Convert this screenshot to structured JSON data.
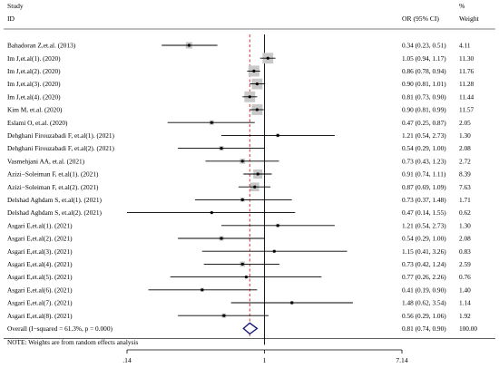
{
  "headers": {
    "study": "Study",
    "id": "ID",
    "or_ci": "OR (95% CI)",
    "pct": "%",
    "weight": "Weight"
  },
  "note": "NOTE: Weights are from random effects analysis",
  "colors": {
    "null_line": "#000000",
    "overall_line": "#cc2222",
    "diamond": "#1a1a7a",
    "box": "#c8c8c8",
    "ci": "#000000"
  },
  "chart_data": {
    "type": "forest",
    "x_scale": "log",
    "x_ticks": [
      {
        "value": 0.14,
        "label": ".14"
      },
      {
        "value": 1,
        "label": "1"
      },
      {
        "value": 7.14,
        "label": "7.14"
      }
    ],
    "xlim": [
      0.14,
      7.14
    ],
    "null_value": 1,
    "studies": [
      {
        "label": "Bahadoran Z,et.al. (2013)",
        "or": 0.34,
        "lo": 0.23,
        "hi": 0.51,
        "ci_text": "0.34 (0.23, 0.51)",
        "weight": 4.11,
        "weight_text": "4.11"
      },
      {
        "label": "Im J,et.al(1). (2020)",
        "or": 1.05,
        "lo": 0.94,
        "hi": 1.17,
        "ci_text": "1.05 (0.94, 1.17)",
        "weight": 11.3,
        "weight_text": "11.30"
      },
      {
        "label": "Im J,et.al(2). (2020)",
        "or": 0.86,
        "lo": 0.78,
        "hi": 0.94,
        "ci_text": "0.86 (0.78, 0.94)",
        "weight": 11.76,
        "weight_text": "11.76"
      },
      {
        "label": "Im J,et.al(3). (2020)",
        "or": 0.9,
        "lo": 0.81,
        "hi": 1.01,
        "ci_text": "0.90 (0.81, 1.01)",
        "weight": 11.28,
        "weight_text": "11.28"
      },
      {
        "label": "Im J,et.al(4). (2020)",
        "or": 0.81,
        "lo": 0.73,
        "hi": 0.9,
        "ci_text": "0.81 (0.73, 0.90)",
        "weight": 11.44,
        "weight_text": "11.44"
      },
      {
        "label": "Kim M, et.al. (2020)",
        "or": 0.9,
        "lo": 0.81,
        "hi": 0.99,
        "ci_text": "0.90 (0.81, 0.99)",
        "weight": 11.57,
        "weight_text": "11.57"
      },
      {
        "label": "Eslami O, et.al. (2020)",
        "or": 0.47,
        "lo": 0.25,
        "hi": 0.87,
        "ci_text": "0.47 (0.25, 0.87)",
        "weight": 2.05,
        "weight_text": "2.05"
      },
      {
        "label": "Dehghani Firouzabadi F, et.al(1). (2021)",
        "or": 1.21,
        "lo": 0.54,
        "hi": 2.73,
        "ci_text": "1.21 (0.54, 2.73)",
        "weight": 1.3,
        "weight_text": "1.30"
      },
      {
        "label": "Dehghani Firouzabadi F, et.al(2). (2021)",
        "or": 0.54,
        "lo": 0.29,
        "hi": 1.0,
        "ci_text": "0.54 (0.29, 1.00)",
        "weight": 2.08,
        "weight_text": "2.08"
      },
      {
        "label": "Vasmehjani AA, et.al. (2021)",
        "or": 0.73,
        "lo": 0.43,
        "hi": 1.23,
        "ci_text": "0.73 (0.43, 1.23)",
        "weight": 2.72,
        "weight_text": "2.72"
      },
      {
        "label": "Azizi−Soleiman F, et.al(1). (2021)",
        "or": 0.91,
        "lo": 0.74,
        "hi": 1.11,
        "ci_text": "0.91 (0.74, 1.11)",
        "weight": 8.39,
        "weight_text": "8.39"
      },
      {
        "label": "Azizi−Soleiman F, et.al(2). (2021)",
        "or": 0.87,
        "lo": 0.69,
        "hi": 1.09,
        "ci_text": "0.87 (0.69, 1.09)",
        "weight": 7.63,
        "weight_text": "7.63"
      },
      {
        "label": "Delshad Aghdam S, et.al(1). (2021)",
        "or": 0.73,
        "lo": 0.37,
        "hi": 1.48,
        "ci_text": "0.73 (0.37, 1.48)",
        "weight": 1.71,
        "weight_text": "1.71"
      },
      {
        "label": "Delshad Aghdam S, et.al(2). (2021)",
        "or": 0.47,
        "lo": 0.14,
        "hi": 1.55,
        "ci_text": "0.47 (0.14, 1.55)",
        "weight": 0.62,
        "weight_text": "0.62"
      },
      {
        "label": "Asgari E,et.al(1). (2021)",
        "or": 1.21,
        "lo": 0.54,
        "hi": 2.73,
        "ci_text": "1.21 (0.54, 2.73)",
        "weight": 1.3,
        "weight_text": "1.30"
      },
      {
        "label": "Asgari E,et.al(2). (2021)",
        "or": 0.54,
        "lo": 0.29,
        "hi": 1.0,
        "ci_text": "0.54 (0.29, 1.00)",
        "weight": 2.08,
        "weight_text": "2.08"
      },
      {
        "label": "Asgari E,et.al(3). (2021)",
        "or": 1.15,
        "lo": 0.41,
        "hi": 3.26,
        "ci_text": "1.15 (0.41, 3.26)",
        "weight": 0.83,
        "weight_text": "0.83"
      },
      {
        "label": "Asgari E,et.al(4). (2021)",
        "or": 0.73,
        "lo": 0.42,
        "hi": 1.24,
        "ci_text": "0.73 (0.42, 1.24)",
        "weight": 2.59,
        "weight_text": "2.59"
      },
      {
        "label": "Asgari E,et.al(5). (2021)",
        "or": 0.77,
        "lo": 0.26,
        "hi": 2.26,
        "ci_text": "0.77 (0.26, 2.26)",
        "weight": 0.76,
        "weight_text": "0.76"
      },
      {
        "label": "Asgari E,et.al(6). (2021)",
        "or": 0.41,
        "lo": 0.19,
        "hi": 0.9,
        "ci_text": "0.41 (0.19, 0.90)",
        "weight": 1.4,
        "weight_text": "1.40"
      },
      {
        "label": "Asgari E,et.al(7). (2021)",
        "or": 1.48,
        "lo": 0.62,
        "hi": 3.54,
        "ci_text": "1.48 (0.62, 3.54)",
        "weight": 1.14,
        "weight_text": "1.14"
      },
      {
        "label": "Asgari E,et.al(8). (2021)",
        "or": 0.56,
        "lo": 0.29,
        "hi": 1.06,
        "ci_text": "0.56 (0.29, 1.06)",
        "weight": 1.92,
        "weight_text": "1.92"
      }
    ],
    "overall": {
      "label": "Overall  (I−squared = 61.3%, p = 0.000)",
      "or": 0.81,
      "lo": 0.74,
      "hi": 0.9,
      "ci_text": "0.81 (0.74, 0.90)",
      "weight_text": "100.00"
    }
  }
}
